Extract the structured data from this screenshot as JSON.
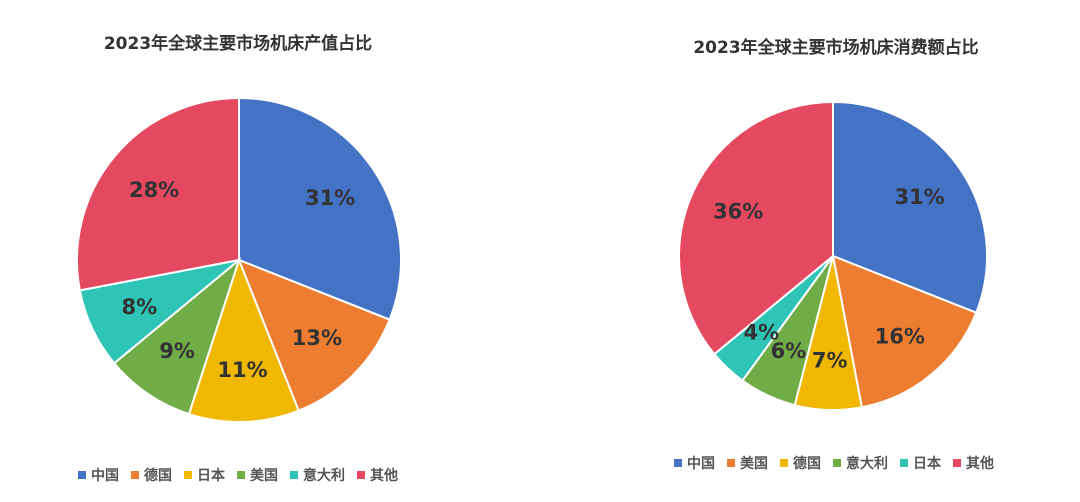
{
  "chart_data": [
    {
      "type": "pie",
      "title": "2023年全球主要市场机床产值占比",
      "categories": [
        "中国",
        "德国",
        "日本",
        "美国",
        "意大利",
        "其他"
      ],
      "values": [
        31,
        13,
        11,
        9,
        8,
        28
      ],
      "labels": [
        "31%",
        "13%",
        "11%",
        "9%",
        "8%",
        "28%"
      ],
      "colors": [
        "#4472C4",
        "#ED7D31",
        "#F0B800",
        "#70AD47",
        "#2EC4B6",
        "#E5495F"
      ],
      "legend_position": "bottom"
    },
    {
      "type": "pie",
      "title": "2023年全球主要市场机床消费额占比",
      "categories": [
        "中国",
        "美国",
        "德国",
        "意大利",
        "日本",
        "其他"
      ],
      "values": [
        31,
        16,
        7,
        6,
        4,
        36
      ],
      "labels": [
        "31%",
        "16%",
        "7%",
        "6%",
        "4%",
        "36%"
      ],
      "colors": [
        "#4472C4",
        "#ED7D31",
        "#F0B800",
        "#70AD47",
        "#2EC4B6",
        "#E5495F"
      ],
      "legend_position": "bottom"
    }
  ]
}
